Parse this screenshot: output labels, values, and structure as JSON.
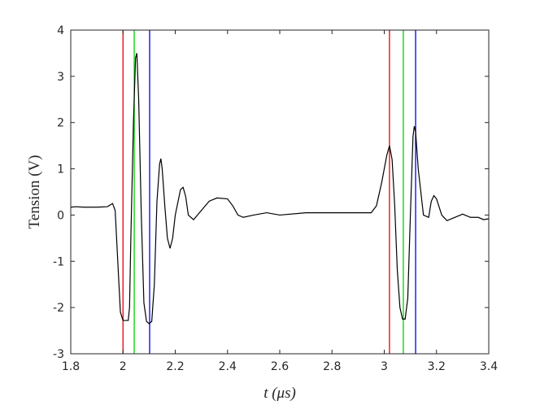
{
  "chart_data": {
    "type": "line",
    "xlabel": "t (μs)",
    "ylabel": "Tension (V)",
    "xlim": [
      1.8,
      3.4
    ],
    "ylim": [
      -3,
      4
    ],
    "xticks": [
      1.8,
      2,
      2.2,
      2.4,
      2.6,
      2.8,
      3,
      3.2,
      3.4
    ],
    "yticks": [
      -3,
      -2,
      -1,
      0,
      1,
      2,
      3,
      4
    ],
    "x": [
      1.8,
      1.82,
      1.85,
      1.9,
      1.94,
      1.96,
      1.97,
      1.98,
      1.99,
      2.0,
      2.02,
      2.025,
      2.03,
      2.04,
      2.048,
      2.053,
      2.06,
      2.07,
      2.08,
      2.09,
      2.1,
      2.11,
      2.12,
      2.13,
      2.14,
      2.145,
      2.15,
      2.16,
      2.17,
      2.18,
      2.19,
      2.2,
      2.22,
      2.23,
      2.24,
      2.25,
      2.27,
      2.3,
      2.33,
      2.36,
      2.4,
      2.42,
      2.44,
      2.46,
      2.5,
      2.55,
      2.6,
      2.7,
      2.8,
      2.9,
      2.95,
      2.97,
      2.99,
      3.01,
      3.02,
      3.03,
      3.04,
      3.05,
      3.06,
      3.07,
      3.08,
      3.09,
      3.1,
      3.11,
      3.115,
      3.12,
      3.13,
      3.15,
      3.17,
      3.18,
      3.19,
      3.2,
      3.22,
      3.24,
      3.27,
      3.3,
      3.33,
      3.36,
      3.38,
      3.4
    ],
    "series": [
      {
        "color": "#000000",
        "values": [
          0.17,
          0.18,
          0.17,
          0.17,
          0.18,
          0.25,
          0.1,
          -1.0,
          -2.1,
          -2.28,
          -2.28,
          -2.0,
          -0.5,
          2.0,
          3.4,
          3.5,
          2.5,
          0.0,
          -1.9,
          -2.3,
          -2.35,
          -2.3,
          -1.5,
          0.3,
          1.1,
          1.22,
          1.0,
          0.2,
          -0.5,
          -0.72,
          -0.5,
          0.0,
          0.55,
          0.6,
          0.4,
          0.0,
          -0.1,
          0.1,
          0.3,
          0.37,
          0.35,
          0.2,
          0.0,
          -0.05,
          0.0,
          0.05,
          0.0,
          0.05,
          0.05,
          0.05,
          0.05,
          0.2,
          0.7,
          1.3,
          1.5,
          1.2,
          0.2,
          -1.2,
          -2.0,
          -2.25,
          -2.25,
          -1.8,
          0.0,
          1.7,
          1.92,
          1.8,
          1.0,
          0.0,
          -0.05,
          0.3,
          0.42,
          0.35,
          0.0,
          -0.12,
          -0.05,
          0.02,
          -0.05,
          -0.05,
          -0.1,
          -0.08
        ]
      }
    ],
    "vlines": {
      "x": [
        2.0,
        2.043,
        2.102,
        3.02,
        3.073,
        3.12
      ],
      "colors": [
        "#e8000b",
        "#00d000",
        "#0000e0",
        "#e8000b",
        "#00d000",
        "#0000e0"
      ]
    }
  }
}
